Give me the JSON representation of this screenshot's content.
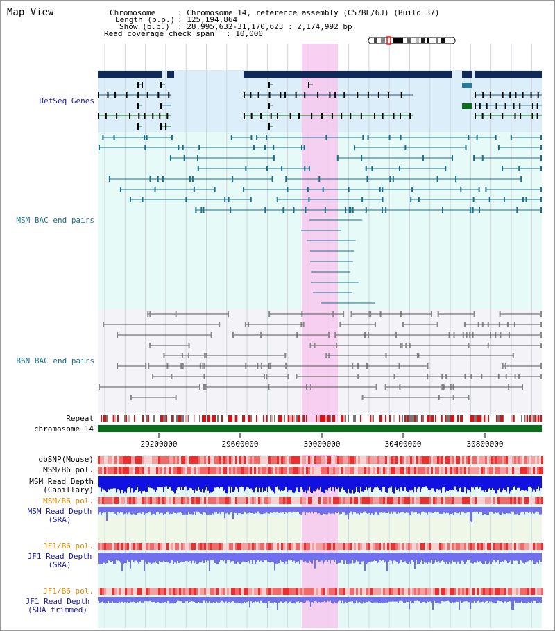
{
  "title": "Map View",
  "info": {
    "chromosome_key": "Chromosome",
    "chromosome_val": ": Chromosome 14, reference assembly (C57BL/6J) (Build 37)",
    "length_key": "Length (b.p.)",
    "length_val": ": 125,194,864",
    "show_key": "Show (b.p.)",
    "show_val": ": 28,995,632-31,170,623 : 2,174,992 bp",
    "coverage_key": "Read coverage check span",
    "coverage_val": ": 10,000"
  },
  "tracks": {
    "refseq": "RefSeq Genes",
    "msm_bac": "MSM BAC end pairs",
    "b6n_bac": "B6N BAC end pairs",
    "repeat": "Repeat",
    "chromosome": "chromosome 14",
    "dbsnp": "dbSNP(Mouse)",
    "msm_b6_pol": "MSM/B6 pol.",
    "msm_read_depth_cap": "MSM Read Depth\n(Capillary)",
    "msm_b6_pol_orange": "MSM/B6 pol.",
    "msm_read_depth_sra": "MSM Read Depth\n(SRA)",
    "jf1_b6_pol_1": "JF1/B6 pol.",
    "jf1_read_depth_sra": "JF1 Read Depth\n(SRA)",
    "jf1_b6_pol_2": "JF1/B6 pol.",
    "jf1_read_depth_trimmed": "JF1 Read Depth\n(SRA trimmed)"
  },
  "axis": {
    "ticks": [
      "29200000",
      "29600000",
      "30000000",
      "30400000",
      "30800000"
    ]
  },
  "colors": {
    "refseq_bg": "#dceefa",
    "msm_bg": "#e6faf8",
    "b6n_bg": "#f3f3f8",
    "highlight": "#f7c8ee",
    "label_blue": "#1a1aa8",
    "label_teal": "#1a6e8a",
    "label_orange": "#e08a00",
    "gene_navy": "#0f2a5a",
    "chrom_green": "#0b6e1a",
    "depth_blue": "#1010e0",
    "depth_light": "#7070ee"
  }
}
